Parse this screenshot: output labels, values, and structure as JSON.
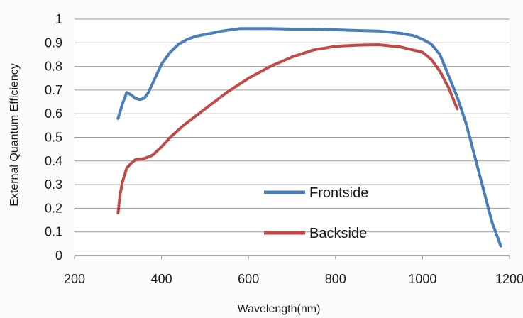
{
  "chart_data": {
    "type": "line",
    "title": "",
    "xlabel": "Wavelength(nm)",
    "ylabel": "External Quantum Efficiency",
    "xlim": [
      200,
      1200
    ],
    "ylim": [
      0,
      1
    ],
    "x_ticks": [
      200,
      400,
      600,
      800,
      1000,
      1200
    ],
    "y_ticks": [
      0,
      0.1,
      0.2,
      0.3,
      0.4,
      0.5,
      0.6,
      0.7,
      0.8,
      0.9,
      1
    ],
    "x_tick_labels": [
      "200",
      "400",
      "600",
      "800",
      "1000",
      "1200"
    ],
    "y_tick_labels": [
      "0",
      "0.1",
      "0.2",
      "0.3",
      "0.4",
      "0.5",
      "0.6",
      "0.7",
      "0.8",
      "0.9",
      "1"
    ],
    "grid": "horizontal",
    "legend_position": "bottom-right",
    "series": [
      {
        "name": "Frontside",
        "color": "#4a7ebb",
        "points": [
          [
            300,
            0.58
          ],
          [
            310,
            0.64
          ],
          [
            320,
            0.69
          ],
          [
            330,
            0.68
          ],
          [
            340,
            0.665
          ],
          [
            350,
            0.66
          ],
          [
            360,
            0.665
          ],
          [
            370,
            0.69
          ],
          [
            380,
            0.73
          ],
          [
            390,
            0.77
          ],
          [
            400,
            0.81
          ],
          [
            420,
            0.86
          ],
          [
            440,
            0.895
          ],
          [
            460,
            0.915
          ],
          [
            480,
            0.928
          ],
          [
            500,
            0.935
          ],
          [
            540,
            0.95
          ],
          [
            580,
            0.96
          ],
          [
            650,
            0.96
          ],
          [
            700,
            0.958
          ],
          [
            750,
            0.958
          ],
          [
            800,
            0.955
          ],
          [
            850,
            0.952
          ],
          [
            900,
            0.95
          ],
          [
            950,
            0.94
          ],
          [
            980,
            0.93
          ],
          [
            1000,
            0.915
          ],
          [
            1020,
            0.895
          ],
          [
            1040,
            0.85
          ],
          [
            1060,
            0.76
          ],
          [
            1080,
            0.67
          ],
          [
            1100,
            0.56
          ],
          [
            1120,
            0.42
          ],
          [
            1140,
            0.28
          ],
          [
            1160,
            0.14
          ],
          [
            1180,
            0.04
          ]
        ]
      },
      {
        "name": "Backside",
        "color": "#be4b48",
        "points": [
          [
            300,
            0.18
          ],
          [
            305,
            0.26
          ],
          [
            310,
            0.31
          ],
          [
            320,
            0.37
          ],
          [
            330,
            0.39
          ],
          [
            340,
            0.405
          ],
          [
            360,
            0.41
          ],
          [
            380,
            0.425
          ],
          [
            400,
            0.46
          ],
          [
            420,
            0.5
          ],
          [
            450,
            0.55
          ],
          [
            500,
            0.62
          ],
          [
            550,
            0.69
          ],
          [
            600,
            0.75
          ],
          [
            650,
            0.8
          ],
          [
            700,
            0.84
          ],
          [
            750,
            0.87
          ],
          [
            800,
            0.885
          ],
          [
            850,
            0.89
          ],
          [
            900,
            0.892
          ],
          [
            950,
            0.882
          ],
          [
            1000,
            0.86
          ],
          [
            1020,
            0.83
          ],
          [
            1040,
            0.78
          ],
          [
            1060,
            0.71
          ],
          [
            1080,
            0.62
          ]
        ]
      }
    ]
  }
}
